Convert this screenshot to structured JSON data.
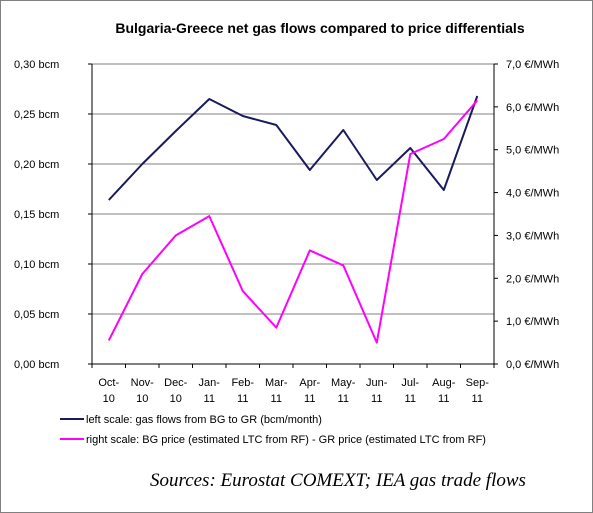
{
  "chart_data": {
    "type": "line",
    "title": "Bulgaria-Greece net gas flows compared to price differentials",
    "categories": [
      [
        "Oct-",
        "10"
      ],
      [
        "Nov-",
        "10"
      ],
      [
        "Dec-",
        "10"
      ],
      [
        "Jan-",
        "11"
      ],
      [
        "Feb-",
        "11"
      ],
      [
        "Mar-",
        "11"
      ],
      [
        "Apr-",
        "11"
      ],
      [
        "May-",
        "11"
      ],
      [
        "Jun-",
        "11"
      ],
      [
        "Jul-",
        "11"
      ],
      [
        "Aug-",
        "11"
      ],
      [
        "Sep-",
        "11"
      ]
    ],
    "left_axis": {
      "ylim": [
        0,
        0.3
      ],
      "ticks": [
        0,
        0.05,
        0.1,
        0.15,
        0.2,
        0.25,
        0.3
      ],
      "tick_labels": [
        "0,00  bcm",
        "0,05  bcm",
        "0,10  bcm",
        "0,15  bcm",
        "0,20  bcm",
        "0,25  bcm",
        "0,30  bcm"
      ]
    },
    "right_axis": {
      "ylim": [
        0,
        7
      ],
      "ticks": [
        0,
        1,
        2,
        3,
        4,
        5,
        6,
        7
      ],
      "tick_labels": [
        "0,0 €/MWh",
        "1,0 €/MWh",
        "2,0 €/MWh",
        "3,0 €/MWh",
        "4,0 €/MWh",
        "5,0 €/MWh",
        "6,0 €/MWh",
        "7,0 €/MWh"
      ]
    },
    "series": [
      {
        "name": "left scale: gas flows from BG to GR (bcm/month)",
        "axis": "left",
        "color": "#1a1a5e",
        "values": [
          0.164,
          0.2,
          0.233,
          0.265,
          0.248,
          0.239,
          0.194,
          0.234,
          0.184,
          0.216,
          0.174,
          0.268
        ]
      },
      {
        "name": "right scale: BG price (estimated LTC from RF) - GR price (estimated LTC from RF)",
        "axis": "right",
        "color": "#ff00ff",
        "values": [
          0.55,
          2.1,
          3.0,
          3.45,
          1.7,
          0.85,
          2.65,
          2.3,
          0.5,
          4.9,
          5.25,
          6.15
        ]
      }
    ],
    "grid": true
  },
  "source": "Sources: Eurostat COMEXT; IEA gas trade flows"
}
